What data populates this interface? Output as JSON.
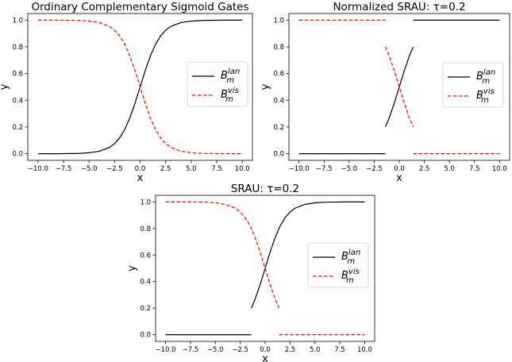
{
  "chart_data": [
    {
      "type": "line",
      "title": "Ordinary Complementary Sigmoid Gates",
      "xlabel": "x",
      "ylabel": "y",
      "xlim": [
        -11,
        11
      ],
      "ylim": [
        -0.05,
        1.05
      ],
      "xticks": [
        "−10.0",
        "−7.5",
        "−5.0",
        "−2.5",
        "0.0",
        "2.5",
        "5.0",
        "7.5",
        "10.0"
      ],
      "yticks": [
        "0.0",
        "0.2",
        "0.4",
        "0.6",
        "0.8",
        "1.0"
      ],
      "legend": "center-right",
      "series": [
        {
          "name": "B_m^lan",
          "color": "#000000",
          "style": "solid",
          "segments": [
            {
              "x": [
                -10.0,
                -8.0,
                -6.0,
                -5.0,
                -4.0,
                -3.0,
                -2.5,
                -2.0,
                -1.5,
                -1.0,
                -0.5,
                0.0,
                0.5,
                1.0,
                1.5,
                2.0,
                2.5,
                3.0,
                4.0,
                5.0,
                6.0,
                8.0,
                10.0
              ],
              "y": [
                0.0,
                0.0,
                0.002,
                0.007,
                0.018,
                0.047,
                0.076,
                0.119,
                0.182,
                0.269,
                0.378,
                0.5,
                0.622,
                0.731,
                0.818,
                0.881,
                0.924,
                0.953,
                0.982,
                0.993,
                0.998,
                1.0,
                1.0
              ]
            }
          ]
        },
        {
          "name": "B_m^vis",
          "color": "#ff0000",
          "style": "dashed",
          "segments": [
            {
              "x": [
                -10.0,
                -8.0,
                -6.0,
                -5.0,
                -4.0,
                -3.0,
                -2.5,
                -2.0,
                -1.5,
                -1.0,
                -0.5,
                0.0,
                0.5,
                1.0,
                1.5,
                2.0,
                2.5,
                3.0,
                4.0,
                5.0,
                6.0,
                8.0,
                10.0
              ],
              "y": [
                1.0,
                1.0,
                0.998,
                0.993,
                0.982,
                0.953,
                0.924,
                0.881,
                0.818,
                0.731,
                0.622,
                0.5,
                0.378,
                0.269,
                0.182,
                0.119,
                0.076,
                0.047,
                0.018,
                0.007,
                0.002,
                0.0,
                0.0
              ]
            }
          ]
        }
      ]
    },
    {
      "type": "line",
      "title": "Normalized SRAU: τ=0.2",
      "xlabel": "x",
      "ylabel": "y",
      "xlim": [
        -11,
        11
      ],
      "ylim": [
        -0.05,
        1.05
      ],
      "xticks": [
        "−10.0",
        "−7.5",
        "−5.0",
        "−2.5",
        "0.0",
        "2.5",
        "5.0",
        "7.5",
        "10.0"
      ],
      "yticks": [
        "0.0",
        "0.2",
        "0.4",
        "0.6",
        "0.8",
        "1.0"
      ],
      "legend": "center-right",
      "series": [
        {
          "name": "B_m^lan",
          "color": "#000000",
          "style": "solid",
          "segments": [
            {
              "x": [
                -10.0,
                -1.386
              ],
              "y": [
                0.0,
                0.0
              ]
            },
            {
              "x": [
                -1.386,
                -1.0,
                -0.5,
                0.0,
                0.5,
                1.0,
                1.386
              ],
              "y": [
                0.2,
                0.269,
                0.378,
                0.5,
                0.622,
                0.731,
                0.8
              ]
            },
            {
              "x": [
                1.386,
                10.0
              ],
              "y": [
                1.0,
                1.0
              ]
            }
          ]
        },
        {
          "name": "B_m^vis",
          "color": "#ff0000",
          "style": "dashed",
          "segments": [
            {
              "x": [
                -10.0,
                -1.386
              ],
              "y": [
                1.0,
                1.0
              ]
            },
            {
              "x": [
                -1.386,
                -1.0,
                -0.5,
                0.0,
                0.5,
                1.0,
                1.386
              ],
              "y": [
                0.8,
                0.731,
                0.622,
                0.5,
                0.378,
                0.269,
                0.2
              ]
            },
            {
              "x": [
                1.386,
                10.0
              ],
              "y": [
                0.0,
                0.0
              ]
            }
          ]
        }
      ]
    },
    {
      "type": "line",
      "title": "SRAU: τ=0.2",
      "xlabel": "x",
      "ylabel": "y",
      "xlim": [
        -11,
        11
      ],
      "ylim": [
        -0.05,
        1.05
      ],
      "xticks": [
        "−10.0",
        "−7.5",
        "−5.0",
        "−2.5",
        "0.0",
        "2.5",
        "5.0",
        "7.5",
        "10.0"
      ],
      "yticks": [
        "0.0",
        "0.2",
        "0.4",
        "0.6",
        "0.8",
        "1.0"
      ],
      "legend": "center-right",
      "series": [
        {
          "name": "B_m^lan",
          "color": "#000000",
          "style": "solid",
          "segments": [
            {
              "x": [
                -10.0,
                -1.386
              ],
              "y": [
                0.0,
                0.0
              ]
            },
            {
              "x": [
                -1.386,
                -1.0,
                -0.5,
                0.0,
                0.5,
                1.0,
                1.5,
                2.0,
                2.5,
                3.0,
                4.0,
                5.0,
                6.0,
                8.0,
                10.0
              ],
              "y": [
                0.2,
                0.269,
                0.378,
                0.5,
                0.622,
                0.731,
                0.818,
                0.881,
                0.924,
                0.953,
                0.982,
                0.993,
                0.998,
                1.0,
                1.0
              ]
            }
          ]
        },
        {
          "name": "B_m^vis",
          "color": "#ff0000",
          "style": "dashed",
          "segments": [
            {
              "x": [
                -10.0,
                -8.0,
                -6.0,
                -5.0,
                -4.0,
                -3.0,
                -2.5,
                -2.0,
                -1.5,
                -1.0,
                -0.5,
                0.0,
                0.5,
                1.0,
                1.386
              ],
              "y": [
                1.0,
                1.0,
                0.998,
                0.993,
                0.982,
                0.953,
                0.924,
                0.881,
                0.818,
                0.731,
                0.622,
                0.5,
                0.378,
                0.269,
                0.2
              ]
            },
            {
              "x": [
                1.386,
                10.0
              ],
              "y": [
                0.0,
                0.0
              ]
            }
          ]
        }
      ]
    }
  ],
  "legend_labels": {
    "lan": {
      "base": "B",
      "sub": "m",
      "sup": "lan"
    },
    "vis": {
      "base": "B",
      "sub": "m",
      "sup": "vis"
    }
  }
}
